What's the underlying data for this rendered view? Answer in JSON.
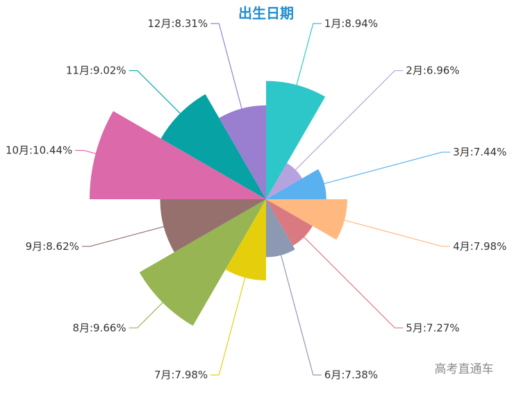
{
  "chart_data": {
    "type": "pie",
    "variant": "rose",
    "title": "出生日期",
    "categories": [
      "1月",
      "2月",
      "3月",
      "4月",
      "5月",
      "6月",
      "7月",
      "8月",
      "9月",
      "10月",
      "11月",
      "12月"
    ],
    "values": [
      8.94,
      6.96,
      7.44,
      7.98,
      7.27,
      7.38,
      7.98,
      9.66,
      8.62,
      10.44,
      9.02,
      8.31
    ],
    "labels": [
      "1月:8.94%",
      "2月:6.96%",
      "3月:7.44%",
      "4月:7.98%",
      "5月:7.27%",
      "6月:7.38%",
      "7月:7.98%",
      "8月:9.66%",
      "9月:8.62%",
      "10月:10.44%",
      "11月:9.02%",
      "12月:8.31%"
    ],
    "colors": [
      "#2ec7c9",
      "#b6a2de",
      "#5ab1ef",
      "#ffb980",
      "#d87a80",
      "#8d98b3",
      "#e5cf0d",
      "#97b552",
      "#95706d",
      "#dc69aa",
      "#07a2a4",
      "#9a7fd1"
    ],
    "legend": "none"
  },
  "watermark": "高考直通车"
}
